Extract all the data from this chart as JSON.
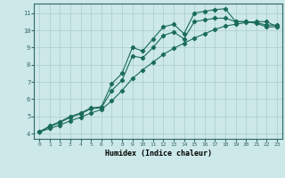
{
  "xlabel": "Humidex (Indice chaleur)",
  "bg_color": "#cce8e8",
  "grid_color": "#aacccc",
  "line_color": "#1a6b5a",
  "xlim": [
    -0.5,
    23.5
  ],
  "ylim": [
    3.7,
    11.55
  ],
  "xticks": [
    0,
    1,
    2,
    3,
    4,
    5,
    6,
    7,
    8,
    9,
    10,
    11,
    12,
    13,
    14,
    15,
    16,
    17,
    18,
    19,
    20,
    21,
    22,
    23
  ],
  "yticks": [
    4,
    5,
    6,
    7,
    8,
    9,
    10,
    11
  ],
  "line1_x": [
    0,
    1,
    2,
    3,
    4,
    5,
    6,
    7,
    8,
    9,
    10,
    11,
    12,
    13,
    14,
    15,
    16,
    17,
    18,
    19,
    20,
    21,
    22,
    23
  ],
  "line1_y": [
    4.1,
    4.45,
    4.7,
    5.0,
    5.2,
    5.5,
    5.55,
    6.9,
    7.5,
    9.0,
    8.8,
    9.5,
    10.2,
    10.35,
    9.8,
    11.0,
    11.1,
    11.2,
    11.25,
    10.5,
    10.5,
    10.4,
    10.2,
    10.2
  ],
  "line2_x": [
    0,
    1,
    2,
    3,
    4,
    5,
    6,
    7,
    8,
    9,
    10,
    11,
    12,
    13,
    14,
    15,
    16,
    17,
    18,
    19,
    20,
    21,
    22,
    23
  ],
  "line2_y": [
    4.1,
    4.4,
    4.65,
    4.95,
    5.15,
    5.45,
    5.5,
    6.5,
    7.1,
    8.5,
    8.4,
    9.0,
    9.7,
    9.9,
    9.5,
    10.5,
    10.6,
    10.7,
    10.7,
    10.5,
    10.5,
    10.45,
    10.3,
    10.3
  ],
  "line3_x": [
    0,
    1,
    2,
    3,
    4,
    5,
    6,
    7,
    8,
    9,
    10,
    11,
    12,
    13,
    14,
    15,
    16,
    17,
    18,
    19,
    20,
    21,
    22,
    23
  ],
  "line3_y": [
    4.1,
    4.3,
    4.5,
    4.75,
    4.95,
    5.2,
    5.4,
    5.9,
    6.5,
    7.2,
    7.7,
    8.15,
    8.6,
    8.95,
    9.25,
    9.55,
    9.8,
    10.05,
    10.25,
    10.35,
    10.45,
    10.5,
    10.5,
    10.2
  ]
}
